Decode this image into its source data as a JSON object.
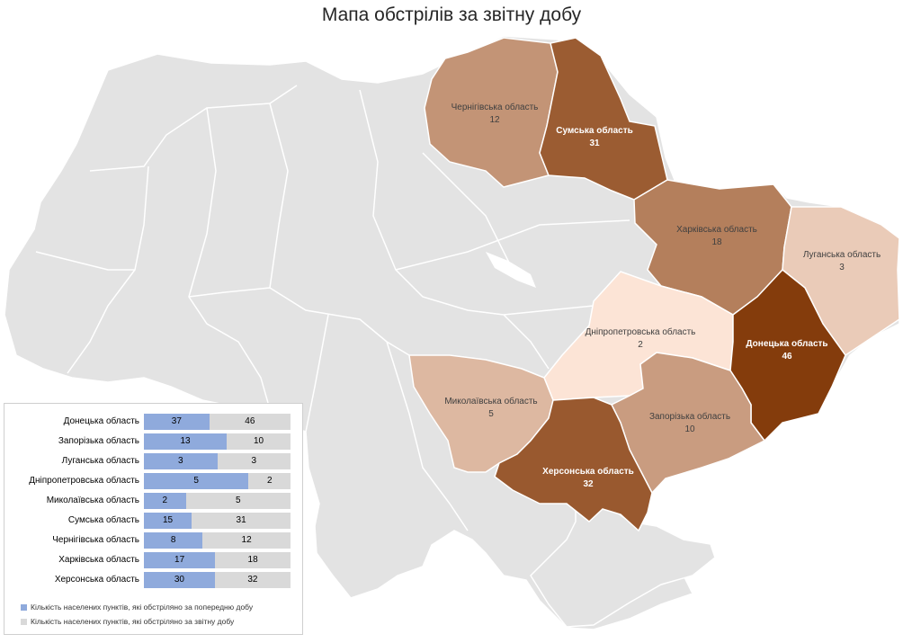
{
  "title": "Мапа обстрілів за звітну добу",
  "regions": [
    {
      "id": "chernihiv",
      "name": "Чернігівська область",
      "value": 12
    },
    {
      "id": "sumy",
      "name": "Сумська область",
      "value": 31
    },
    {
      "id": "kharkiv",
      "name": "Харківська область",
      "value": 18
    },
    {
      "id": "luhansk",
      "name": "Луганська область",
      "value": 3
    },
    {
      "id": "dnipro",
      "name": "Дніпропетровська область",
      "value": 2
    },
    {
      "id": "donetsk",
      "name": "Донецька область",
      "value": 46
    },
    {
      "id": "mykolaiv",
      "name": "Миколаївська область",
      "value": 5
    },
    {
      "id": "zaporizhzhia",
      "name": "Запорізька область",
      "value": 10
    },
    {
      "id": "kherson",
      "name": "Херсонська область",
      "value": 32
    }
  ],
  "chart_data": {
    "type": "bar",
    "categories": [
      "Донецька область",
      "Запорізька область",
      "Луганська область",
      "Дніпропетровська область",
      "Миколаївська область",
      "Сумська область",
      "Чернігівська область",
      "Харківська область",
      "Херсонська область"
    ],
    "series": [
      {
        "name": "Кількість населених пунктів, які обстріляно за попередню добу",
        "values": [
          37,
          13,
          3,
          5,
          2,
          15,
          8,
          17,
          30
        ],
        "color": "#8faadc"
      },
      {
        "name": "Кількість населених пунктів, які обстріляно за звітну добу",
        "values": [
          46,
          10,
          3,
          2,
          5,
          31,
          12,
          18,
          32
        ],
        "color": "#d9d9d9"
      }
    ],
    "stacked": "percent",
    "legend_position": "bottom"
  },
  "colors": {
    "max": "#843c0c",
    "min": "#fce4d6",
    "neutral": "#e3e3e3",
    "border": "#ffffff"
  }
}
